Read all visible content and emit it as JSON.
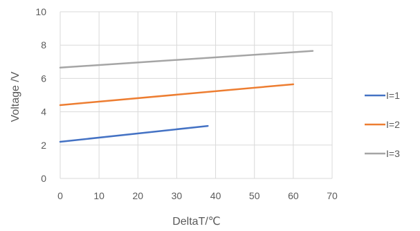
{
  "chart_data": {
    "type": "line",
    "xlabel": "DeltaT/℃",
    "ylabel": "Voltage /V",
    "xlim": [
      0,
      70
    ],
    "ylim": [
      0,
      10
    ],
    "xticks": [
      0,
      10,
      20,
      30,
      40,
      50,
      60,
      70
    ],
    "yticks": [
      0,
      2,
      4,
      6,
      8,
      10
    ],
    "grid": "both",
    "legend_position": "right",
    "series": [
      {
        "name": "I=1",
        "color": "#4472C4",
        "x": [
          0,
          38
        ],
        "y": [
          2.2,
          3.15
        ]
      },
      {
        "name": "I=2",
        "color": "#ED7D31",
        "x": [
          0,
          60
        ],
        "y": [
          4.4,
          5.65
        ]
      },
      {
        "name": "I=3",
        "color": "#A5A5A5",
        "x": [
          0,
          65
        ],
        "y": [
          6.65,
          7.65
        ]
      }
    ]
  }
}
